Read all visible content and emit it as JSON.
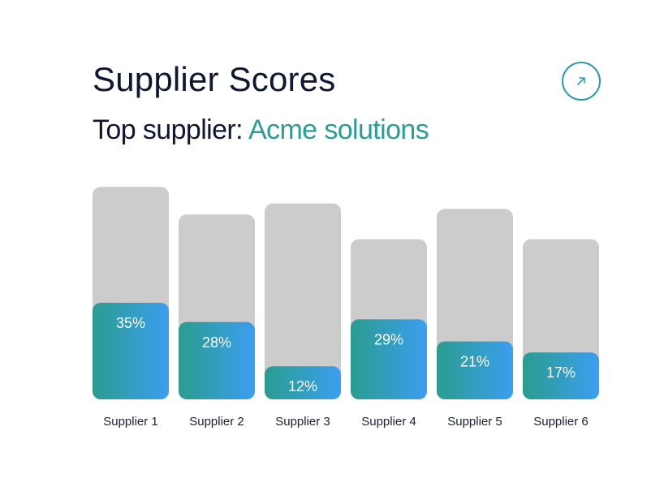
{
  "header": {
    "title": "Supplier Scores",
    "subtitle_prefix": "Top supplier:",
    "subtitle_accent": "Acme solutions",
    "expand_icon": "arrow-up-right-icon"
  },
  "colors": {
    "background_bar": "#cccccc",
    "gradient_start": "#2a9d8f",
    "gradient_end": "#3b9ef0",
    "threshold_start": "#4a8fe8",
    "threshold_mid": "#9a4de0",
    "threshold_end": "#e8558a",
    "accent": "#2a9d96"
  },
  "chart_data": {
    "type": "bar",
    "title": "Supplier Scores",
    "categories": [
      "Supplier 1",
      "Supplier 2",
      "Supplier 3",
      "Supplier 4",
      "Supplier 5",
      "Supplier 6"
    ],
    "values": [
      35,
      28,
      12,
      29,
      21,
      17
    ],
    "value_labels": [
      "35%",
      "28%",
      "12%",
      "29%",
      "21%",
      "17%"
    ],
    "background_values": [
      77,
      67,
      71,
      58,
      69,
      58
    ],
    "threshold": 35,
    "ylim": [
      0,
      100
    ],
    "grid": false,
    "legend": "none"
  }
}
